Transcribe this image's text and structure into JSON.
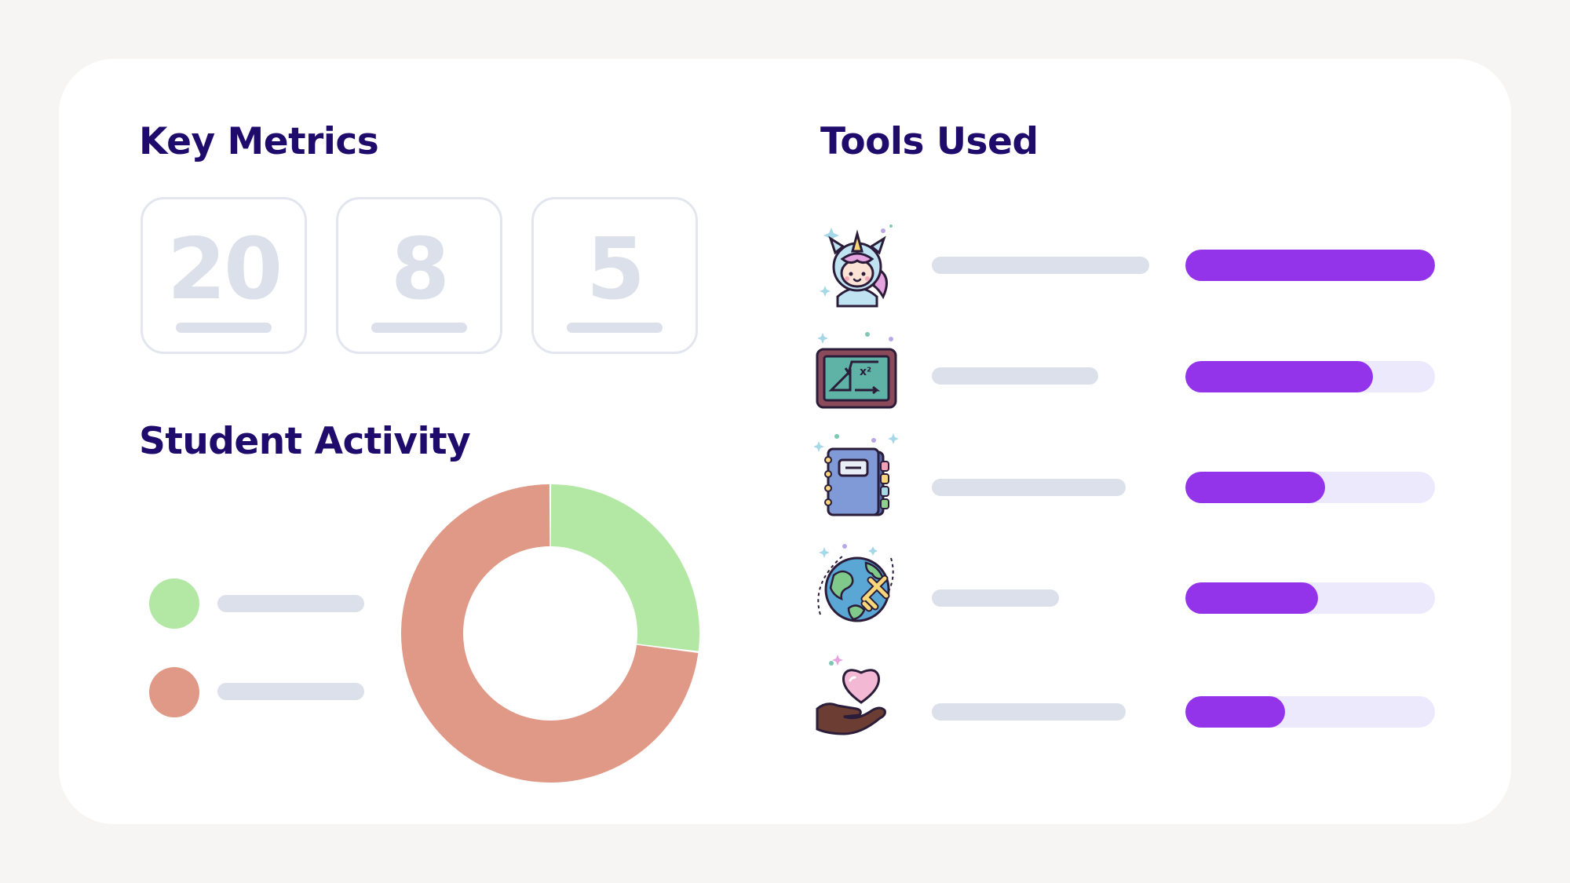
{
  "key_metrics": {
    "title": "Key Metrics",
    "metrics": [
      {
        "value": "20"
      },
      {
        "value": "8"
      },
      {
        "value": "5"
      }
    ]
  },
  "student_activity": {
    "title": "Student Activity",
    "legend": [
      {
        "color": "#b2e8a4"
      },
      {
        "color": "#e09887"
      }
    ]
  },
  "tools_used": {
    "title": "Tools Used",
    "tools": [
      {
        "icon": "unicorn-icon",
        "progress": 1.0
      },
      {
        "icon": "math-chalkboard-icon",
        "progress": 0.75
      },
      {
        "icon": "notebook-icon",
        "progress": 0.56
      },
      {
        "icon": "globe-airplane-icon",
        "progress": 0.53
      },
      {
        "icon": "heart-in-hand-icon",
        "progress": 0.4
      }
    ],
    "bar_color": "#9333ea",
    "track_color": "#ece9fd"
  },
  "chart_data": {
    "type": "pie",
    "values": [
      27,
      73
    ],
    "colors": [
      "#b2e8a4",
      "#e09887"
    ]
  }
}
